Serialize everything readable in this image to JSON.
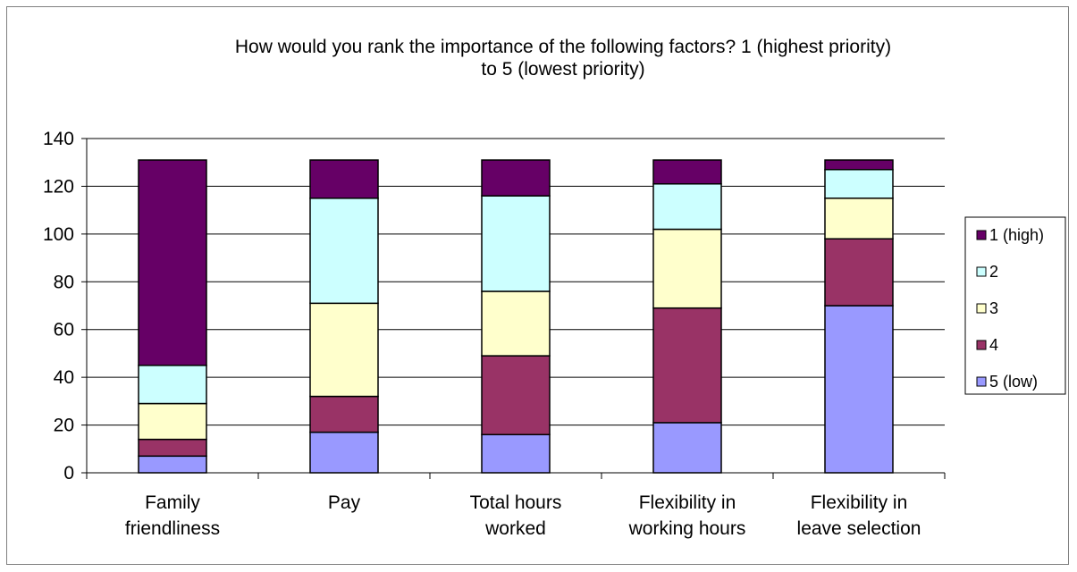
{
  "chart_data": {
    "type": "bar",
    "stacked": true,
    "title_line1": "How would you rank the importance of the following factors?  1 (highest priority)",
    "title_line2": "to 5 (lowest priority)",
    "categories": [
      [
        "Family",
        "friendliness"
      ],
      [
        "Pay",
        ""
      ],
      [
        "Total hours",
        "worked"
      ],
      [
        "Flexibility in",
        "working hours"
      ],
      [
        "Flexibility in",
        "leave selection"
      ]
    ],
    "series": [
      {
        "name": "5 (low)",
        "color": "#9999ff",
        "values": [
          7,
          17,
          16,
          21,
          70
        ]
      },
      {
        "name": "4",
        "color": "#993366",
        "values": [
          7,
          15,
          33,
          48,
          28
        ]
      },
      {
        "name": "3",
        "color": "#ffffcc",
        "values": [
          15,
          39,
          27,
          33,
          17
        ]
      },
      {
        "name": "2",
        "color": "#ccffff",
        "values": [
          16,
          44,
          40,
          19,
          12
        ]
      },
      {
        "name": "1 (high)",
        "color": "#660066",
        "values": [
          86,
          16,
          15,
          10,
          4
        ]
      }
    ],
    "legend_order": [
      "1 (high)",
      "2",
      "3",
      "4",
      "5 (low)"
    ],
    "ylim": [
      0,
      140
    ],
    "yticks": [
      0,
      20,
      40,
      60,
      80,
      100,
      120,
      140
    ],
    "grid": true,
    "legend_position": "right"
  }
}
